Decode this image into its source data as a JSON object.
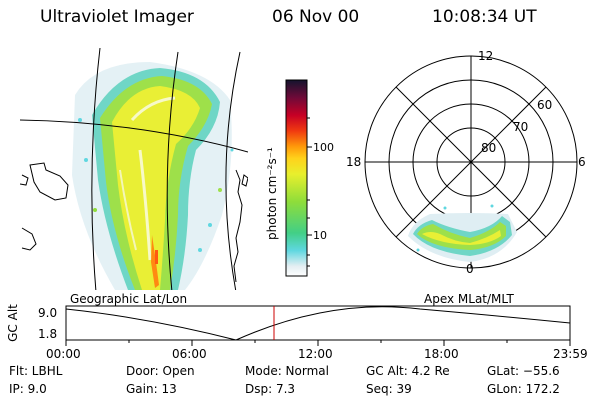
{
  "header": {
    "instrument": "Ultraviolet Imager",
    "date": "06 Nov 00",
    "time": "10:08:34 UT"
  },
  "colorbar": {
    "unit_label": "photon cm⁻²s⁻¹",
    "ticks": [
      "100",
      "10"
    ]
  },
  "polar": {
    "mlt_labels": {
      "top": "12",
      "left": "18",
      "right": "6",
      "bottom": "0"
    },
    "lat_labels": [
      "60",
      "70",
      "80"
    ]
  },
  "panels": {
    "left_caption": "Geographic Lat/Lon",
    "right_caption": "Apex MLat/MLT"
  },
  "alt_plot": {
    "axis_label": "GC Alt",
    "y_ticks": [
      "9.0",
      "1.8"
    ],
    "x_ticks": [
      "00:00",
      "06:00",
      "12:00",
      "18:00",
      "23:59"
    ],
    "current_marker_color": "#cc0000"
  },
  "info": {
    "filter": "Flt: LBHL",
    "ip": "IP:  9.0",
    "door": "Door: Open",
    "gain": "Gain: 13",
    "mode": "Mode: Normal",
    "dsp": "Dsp:     7.3",
    "gc_alt": "GC Alt: 4.2 Re",
    "seq": "Seq: 39",
    "glat": "GLat:  −55.6",
    "glon": "GLon: 172.2"
  }
}
